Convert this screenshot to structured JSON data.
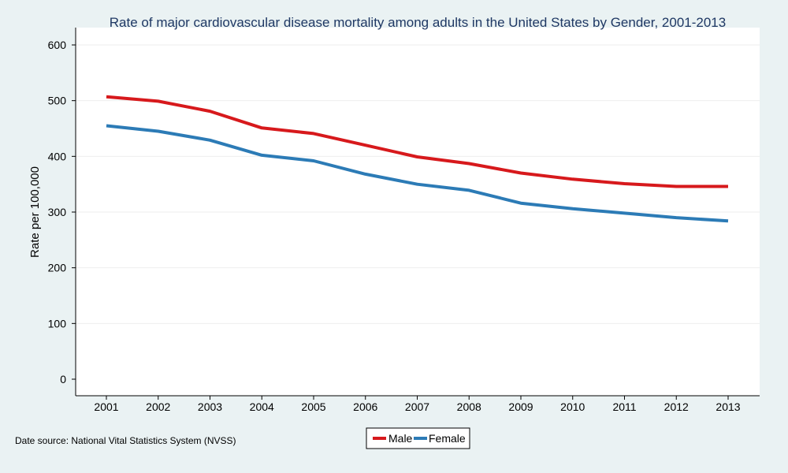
{
  "colors": {
    "background": "#eaf2f3",
    "plot_background": "#ffffff",
    "male": "#d7191c",
    "female": "#2c7bb6",
    "title": "#1f3864"
  },
  "source_note": "Date source: National Vital Statistics System (NVSS)",
  "chart_data": {
    "type": "line",
    "title": "Rate of major cardiovascular disease mortality among adults in the United States by Gender, 2001-2013",
    "xlabel": "",
    "ylabel": "Rate per 100,000",
    "x": [
      2001,
      2002,
      2003,
      2004,
      2005,
      2006,
      2007,
      2008,
      2009,
      2010,
      2011,
      2012,
      2013
    ],
    "ylim": [
      0,
      600
    ],
    "yticks": [
      0,
      100,
      200,
      300,
      400,
      500,
      600
    ],
    "grid": true,
    "legend_position": "bottom",
    "series": [
      {
        "name": "Male",
        "color": "#d7191c",
        "values": [
          507,
          499,
          481,
          451,
          441,
          420,
          399,
          387,
          370,
          359,
          351,
          346,
          346
        ]
      },
      {
        "name": "Female",
        "color": "#2c7bb6",
        "values": [
          455,
          445,
          429,
          402,
          392,
          368,
          350,
          339,
          316,
          306,
          298,
          290,
          284
        ]
      }
    ]
  }
}
